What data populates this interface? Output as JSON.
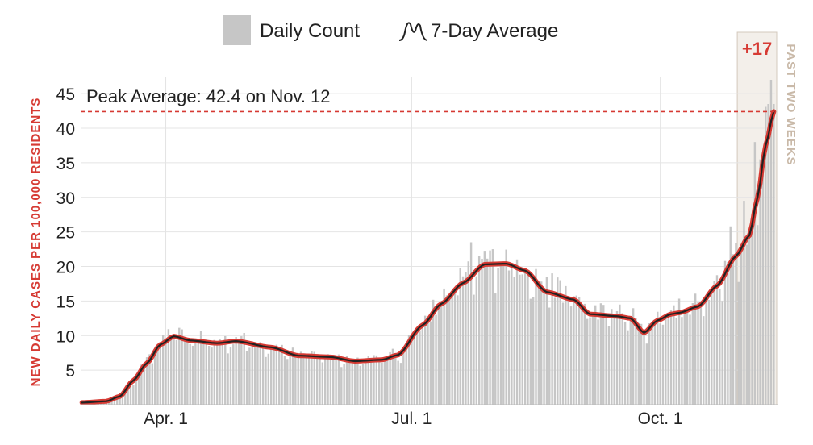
{
  "chart_data": {
    "type": "bar",
    "ylabel": "NEW DAILY CASES PER 100,000 RESIDENTS",
    "ylim": [
      0,
      47
    ],
    "yticks": [
      5,
      10,
      15,
      20,
      25,
      30,
      35,
      40,
      45
    ],
    "x_tick_labels": [
      {
        "label": "Apr. 1",
        "date": "2020-04-01"
      },
      {
        "label": "Jul. 1",
        "date": "2020-07-01"
      },
      {
        "label": "Oct. 1",
        "date": "2020-10-01"
      }
    ],
    "x_range": [
      "2020-03-01",
      "2020-11-12"
    ],
    "grid": true,
    "legend": {
      "placement": "top-center",
      "items": [
        {
          "label": "Daily Count",
          "color": "#c6c6c6"
        },
        {
          "label": "7-Day Average",
          "color": "#222222"
        }
      ]
    },
    "peak_annotation": {
      "text": "Peak Average: 42.4 on Nov. 12",
      "value": 42.4,
      "color": "#d63a33"
    },
    "recent_window": {
      "label": "PAST TWO WEEKS",
      "change_label": "+17",
      "start": "2020-10-30",
      "end": "2020-11-12"
    },
    "bar_color": "#c6c6c6",
    "line_color": "#222222",
    "line_halo_color": "#d63a33",
    "average_keypoints": [
      {
        "date": "2020-03-01",
        "value": 0.3
      },
      {
        "date": "2020-03-10",
        "value": 0.5
      },
      {
        "date": "2020-03-15",
        "value": 1.2
      },
      {
        "date": "2020-03-20",
        "value": 3.5
      },
      {
        "date": "2020-03-25",
        "value": 6.0
      },
      {
        "date": "2020-03-30",
        "value": 8.7
      },
      {
        "date": "2020-04-04",
        "value": 9.9
      },
      {
        "date": "2020-04-10",
        "value": 9.3
      },
      {
        "date": "2020-04-20",
        "value": 8.9
      },
      {
        "date": "2020-04-27",
        "value": 9.2
      },
      {
        "date": "2020-05-10",
        "value": 8.3
      },
      {
        "date": "2020-05-20",
        "value": 7.1
      },
      {
        "date": "2020-06-01",
        "value": 6.9
      },
      {
        "date": "2020-06-10",
        "value": 6.3
      },
      {
        "date": "2020-06-20",
        "value": 6.5
      },
      {
        "date": "2020-06-26",
        "value": 7.2
      },
      {
        "date": "2020-07-05",
        "value": 11.5
      },
      {
        "date": "2020-07-12",
        "value": 14.6
      },
      {
        "date": "2020-07-20",
        "value": 17.6
      },
      {
        "date": "2020-07-28",
        "value": 20.3
      },
      {
        "date": "2020-08-05",
        "value": 20.4
      },
      {
        "date": "2020-08-12",
        "value": 19.4
      },
      {
        "date": "2020-08-20",
        "value": 16.3
      },
      {
        "date": "2020-08-30",
        "value": 15.2
      },
      {
        "date": "2020-09-05",
        "value": 13.1
      },
      {
        "date": "2020-09-15",
        "value": 12.8
      },
      {
        "date": "2020-09-20",
        "value": 12.5
      },
      {
        "date": "2020-09-25",
        "value": 10.4
      },
      {
        "date": "2020-09-30",
        "value": 12.2
      },
      {
        "date": "2020-10-05",
        "value": 13.1
      },
      {
        "date": "2020-10-08",
        "value": 13.3
      },
      {
        "date": "2020-10-15",
        "value": 14.2
      },
      {
        "date": "2020-10-22",
        "value": 17.2
      },
      {
        "date": "2020-10-29",
        "value": 21.5
      },
      {
        "date": "2020-11-03",
        "value": 24.5
      },
      {
        "date": "2020-11-06",
        "value": 30.0
      },
      {
        "date": "2020-11-09",
        "value": 37.5
      },
      {
        "date": "2020-11-12",
        "value": 42.4
      }
    ],
    "daily_highlights": [
      {
        "date": "2020-07-23",
        "value": 23.5
      },
      {
        "date": "2020-07-31",
        "value": 22.5
      },
      {
        "date": "2020-08-22",
        "value": 19.0
      },
      {
        "date": "2020-10-27",
        "value": 25.8
      },
      {
        "date": "2020-11-01",
        "value": 29.5
      },
      {
        "date": "2020-11-05",
        "value": 38.0
      },
      {
        "date": "2020-11-07",
        "value": 35.5
      },
      {
        "date": "2020-11-10",
        "value": 43.5
      },
      {
        "date": "2020-11-11",
        "value": 47.0
      }
    ]
  }
}
